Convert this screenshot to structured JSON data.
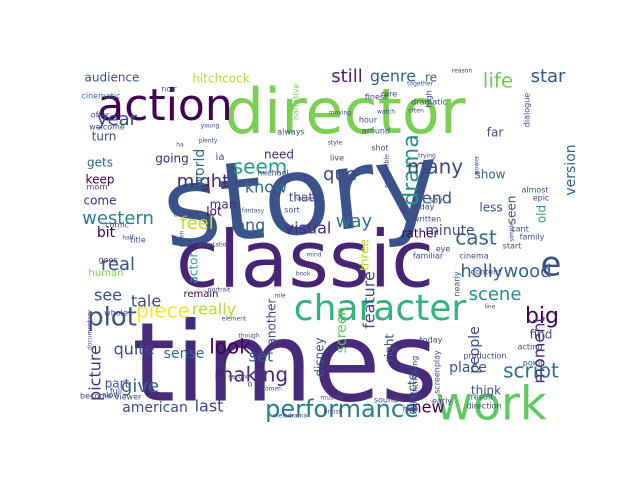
{
  "word_cloud": {
    "words": [
      {
        "text": "story",
        "color": "#3b528b"
      },
      {
        "text": "times",
        "color": "#472a7a"
      },
      {
        "text": "classic",
        "color": "#482475"
      },
      {
        "text": "director",
        "color": "#7ad151"
      },
      {
        "text": "work",
        "color": "#5ec962"
      },
      {
        "text": "character",
        "color": "#2fb47c"
      },
      {
        "text": "action",
        "color": "#440154"
      },
      {
        "text": "e",
        "color": "#3e4a89"
      },
      {
        "text": "performance",
        "color": "#287c8e"
      },
      {
        "text": "hollywood",
        "color": "#32648e"
      },
      {
        "text": "drama",
        "color": "#21918c"
      },
      {
        "text": "script",
        "color": "#2c728e"
      },
      {
        "text": "plot",
        "color": "#3b528b"
      },
      {
        "text": "many",
        "color": "#3e4a89"
      },
      {
        "text": "feel",
        "color": "#bddf26"
      },
      {
        "text": "seem",
        "color": "#20a386"
      },
      {
        "text": "look",
        "color": "#440154"
      },
      {
        "text": "making",
        "color": "#482878"
      },
      {
        "text": "real",
        "color": "#3b528b"
      },
      {
        "text": "life",
        "color": "#6ece58"
      },
      {
        "text": "year",
        "color": "#3e4a89"
      },
      {
        "text": "might",
        "color": "#482878"
      },
      {
        "text": "western",
        "color": "#26828e"
      },
      {
        "text": "end",
        "color": "#3b528b"
      },
      {
        "text": "cast",
        "color": "#31688e"
      },
      {
        "text": "big",
        "color": "#440154"
      },
      {
        "text": "scene",
        "color": "#21918c"
      },
      {
        "text": "feature",
        "color": "#3e4a89"
      },
      {
        "text": "moment",
        "color": "#482878"
      },
      {
        "text": "still",
        "color": "#482475"
      },
      {
        "text": "genre",
        "color": "#32648e"
      },
      {
        "text": "star",
        "color": "#3b528b"
      },
      {
        "text": "que",
        "color": "#3e4a89"
      },
      {
        "text": "way",
        "color": "#2a788e"
      },
      {
        "text": "visual",
        "color": "#472c7a"
      },
      {
        "text": "long",
        "color": "#32648e"
      },
      {
        "text": "piece",
        "color": "#fde725"
      },
      {
        "text": "quite",
        "color": "#3e4a89"
      },
      {
        "text": "give",
        "color": "#31688e"
      },
      {
        "text": "see",
        "color": "#3b528b"
      },
      {
        "text": "tale",
        "color": "#3e4a89"
      },
      {
        "text": "new",
        "color": "#440154"
      },
      {
        "text": "last",
        "color": "#3e4a89"
      },
      {
        "text": "american",
        "color": "#3e4a89"
      },
      {
        "text": "set",
        "color": "#38598c"
      },
      {
        "text": "picture",
        "color": "#472c7a"
      },
      {
        "text": "world",
        "color": "#2a788e"
      },
      {
        "text": "know",
        "color": "#31688e"
      },
      {
        "text": "minute",
        "color": "#3e4a89"
      },
      {
        "text": "version",
        "color": "#32648e"
      },
      {
        "text": "people",
        "color": "#3e4a89"
      },
      {
        "text": "place",
        "color": "#3b528b"
      },
      {
        "text": "screen",
        "color": "#5ec962"
      },
      {
        "text": "disney",
        "color": "#3b528b"
      },
      {
        "text": "really",
        "color": "#b5de2b"
      },
      {
        "text": "sense",
        "color": "#31688e"
      },
      {
        "text": "hitchcock",
        "color": "#b5de2b"
      },
      {
        "text": "audience",
        "color": "#3b528b"
      },
      {
        "text": "turn",
        "color": "#3e4a89"
      },
      {
        "text": "come",
        "color": "#482878"
      },
      {
        "text": "gets",
        "color": "#31688e"
      },
      {
        "text": "keep",
        "color": "#440154"
      },
      {
        "text": "going",
        "color": "#482878"
      },
      {
        "text": "man",
        "color": "#482878"
      },
      {
        "text": "need",
        "color": "#482878"
      },
      {
        "text": "thats",
        "color": "#3e4a89"
      },
      {
        "text": "lot",
        "color": "#440154"
      },
      {
        "text": "another",
        "color": "#3e4a89"
      },
      {
        "text": "bit",
        "color": "#440154"
      },
      {
        "text": "actor",
        "color": "#20a386"
      },
      {
        "text": "three",
        "color": "#b5de2b"
      },
      {
        "text": "right",
        "color": "#3e4a89"
      },
      {
        "text": "directed",
        "color": "#3e4a89"
      },
      {
        "text": "rather",
        "color": "#440154"
      },
      {
        "text": "less",
        "color": "#3e4a89"
      },
      {
        "text": "show",
        "color": "#31688e"
      },
      {
        "text": "seen",
        "color": "#3b528b"
      },
      {
        "text": "old",
        "color": "#1fa088"
      },
      {
        "text": "find",
        "color": "#3e4a89"
      },
      {
        "text": "think",
        "color": "#3b528b"
      },
      {
        "text": "part",
        "color": "#3b528b"
      },
      {
        "text": "far",
        "color": "#3e4a89"
      },
      {
        "text": "remain",
        "color": "#440154"
      },
      {
        "text": "human",
        "color": "#7ad151"
      },
      {
        "text": "re",
        "color": "#31688e"
      },
      {
        "text": "cinematic",
        "color": "#2a788e"
      },
      {
        "text": "offer",
        "color": "#3e4a89"
      },
      {
        "text": "welcome",
        "color": "#3e4a89"
      },
      {
        "text": "narrative",
        "color": "#7ad151"
      },
      {
        "text": "dialogue",
        "color": "#3e4a89"
      },
      {
        "text": "epic",
        "color": "#3e4a89"
      },
      {
        "text": "almost",
        "color": "#3b528b"
      },
      {
        "text": "family",
        "color": "#3e4a89"
      },
      {
        "text": "acting",
        "color": "#3e4a89"
      },
      {
        "text": "cant",
        "color": "#3e4a89"
      },
      {
        "text": "written",
        "color": "#3e4a89"
      },
      {
        "text": "eye",
        "color": "#3e4a89"
      },
      {
        "text": "nearly",
        "color": "#3e4a89"
      },
      {
        "text": "cinema",
        "color": "#3e4a89"
      },
      {
        "text": "start",
        "color": "#3e4a89"
      },
      {
        "text": "content",
        "color": "#3e4a89"
      },
      {
        "text": "familiar",
        "color": "#3e4a89"
      },
      {
        "text": "screenplay",
        "color": "#3e4a89"
      },
      {
        "text": "intriguing",
        "color": "#3e4a89"
      },
      {
        "text": "production",
        "color": "#3e4a89"
      },
      {
        "text": "hit",
        "color": "#3e4a89"
      },
      {
        "text": "direction",
        "color": "#3e4a89"
      },
      {
        "text": "result",
        "color": "#3e4a89"
      },
      {
        "text": "point",
        "color": "#3e4a89"
      },
      {
        "text": "early",
        "color": "#3e4a89"
      },
      {
        "text": "today",
        "color": "#3e4a89"
      },
      {
        "text": "sound",
        "color": "#3e4a89"
      },
      {
        "text": "musical",
        "color": "#3e4a89"
      },
      {
        "text": "shot",
        "color": "#3e4a89"
      },
      {
        "text": "hour",
        "color": "#3e4a89"
      },
      {
        "text": "always",
        "color": "#3e4a89"
      },
      {
        "text": "around",
        "color": "#3e4a89"
      },
      {
        "text": "live",
        "color": "#3e4a89"
      },
      {
        "text": "sort",
        "color": "#3e4a89"
      },
      {
        "text": "michael",
        "color": "#3e4a89"
      },
      {
        "text": "theres",
        "color": "#3e4a89"
      },
      {
        "text": "title",
        "color": "#3e4a89"
      },
      {
        "text": "morn",
        "color": "#3e4a89"
      },
      {
        "text": "comic",
        "color": "#3e4a89"
      },
      {
        "text": "become",
        "color": "#3e4a89"
      },
      {
        "text": "viewer",
        "color": "#3e4a89"
      },
      {
        "text": "whole",
        "color": "#3e4a89"
      },
      {
        "text": "full",
        "color": "#3e4a89"
      },
      {
        "text": "slow",
        "color": "#3e4a89"
      },
      {
        "text": "goes",
        "color": "#3e4a89"
      },
      {
        "text": "noir",
        "color": "#3e4a89"
      },
      {
        "text": "rare",
        "color": "#3e4a89"
      },
      {
        "text": "finest",
        "color": "#3e4a89"
      },
      {
        "text": "dramatic",
        "color": "#3e4a89"
      },
      {
        "text": "high",
        "color": "#3e4a89"
      },
      {
        "text": "fantasy",
        "color": "#3e4a89"
      },
      {
        "text": "adaptation",
        "color": "#3e4a89"
      },
      {
        "text": "portrait",
        "color": "#3e4a89"
      },
      {
        "text": "element",
        "color": "#3e4a89"
      },
      {
        "text": "documentary",
        "color": "#3e4a89"
      },
      {
        "text": "melodrama",
        "color": "#3e4a89"
      },
      {
        "text": "british",
        "color": "#3e4a89"
      },
      {
        "text": "women",
        "color": "#3e4a89"
      },
      {
        "text": "second",
        "color": "#3e4a89"
      },
      {
        "text": "though",
        "color": "#3e4a89"
      },
      {
        "text": "simple",
        "color": "#3e4a89"
      },
      {
        "text": "reason",
        "color": "#3e4a89"
      },
      {
        "text": "together",
        "color": "#3e4a89"
      },
      {
        "text": "power",
        "color": "#3e4a89"
      },
      {
        "text": "predictable",
        "color": "#3e4a89"
      },
      {
        "text": "trying",
        "color": "#3e4a89"
      },
      {
        "text": "often",
        "color": "#3e4a89"
      },
      {
        "text": "watch",
        "color": "#3e4a89"
      },
      {
        "text": "moving",
        "color": "#3e4a89"
      },
      {
        "text": "style",
        "color": "#3e4a89"
      },
      {
        "text": "young",
        "color": "#3e4a89"
      },
      {
        "text": "plenty",
        "color": "#3e4a89"
      },
      {
        "text": "day",
        "color": "#3e4a89"
      },
      {
        "text": "say",
        "color": "#3e4a89"
      },
      {
        "text": "line",
        "color": "#3e4a89"
      },
      {
        "text": "role",
        "color": "#3e4a89"
      },
      {
        "text": "mind",
        "color": "#3e4a89"
      },
      {
        "text": "half",
        "color": "#3e4a89"
      },
      {
        "text": "given",
        "color": "#3e4a89"
      },
      {
        "text": "book",
        "color": "#3e4a89"
      },
      {
        "text": "nature",
        "color": "#3e4a89"
      },
      {
        "text": "ia",
        "color": "#3e4a89"
      },
      {
        "text": "n",
        "color": "#3e4a89"
      },
      {
        "text": "o",
        "color": "#3e4a89"
      },
      {
        "text": "ha",
        "color": "#3e4a89"
      }
    ]
  }
}
